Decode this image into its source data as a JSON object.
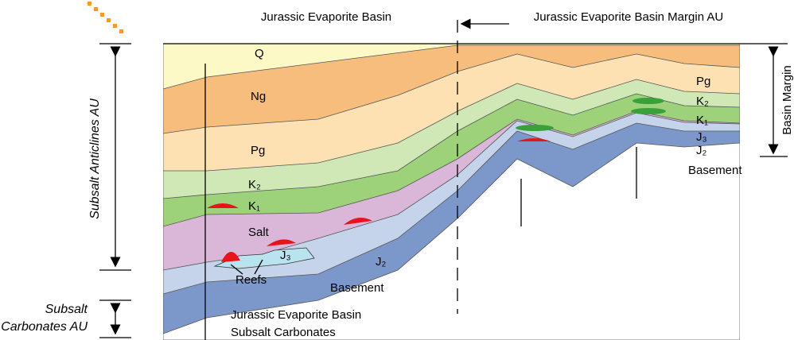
{
  "header": {
    "left": "Jurassic Evaporite Basin",
    "right": "Jurassic Evaporite Basin Margin AU"
  },
  "basin_labels": [
    "Q",
    "Ng",
    "Pg",
    "K₂",
    "K₁",
    "Salt",
    "J₃",
    "J₂",
    "Reefs",
    "Basement"
  ],
  "margin_labels": [
    "Pg",
    "K₂",
    "K₁",
    "J₃",
    "J₂",
    "Basement"
  ],
  "subsalt_label": [
    "Jurassic Evaporite Basin",
    "Subsalt Carbonates"
  ],
  "side_labels": {
    "subsalt_anticlines": "Subsalt Anticlines AU",
    "subsalt_carbonates": [
      "Subsalt",
      "Carbonates AU"
    ],
    "basin_margin": "Basin Margin"
  }
}
